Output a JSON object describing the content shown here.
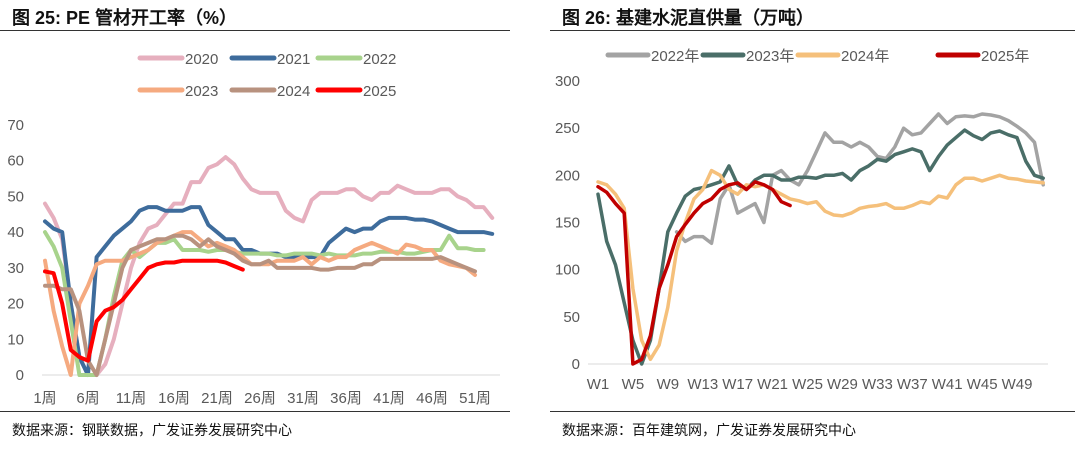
{
  "chart_data": [
    {
      "type": "line",
      "title": "图 25:  PE 管材开工率（%）",
      "source": "数据来源：钢联数据，广发证券发展研究中心",
      "ylim": [
        0,
        70
      ],
      "yticks": [
        "0",
        "10",
        "20",
        "30",
        "40",
        "50",
        "60",
        "70"
      ],
      "xticks": [
        "1周",
        "6周",
        "11周",
        "16周",
        "21周",
        "26周",
        "31周",
        "36周",
        "41周",
        "46周",
        "51周"
      ],
      "xunit": "week",
      "legend_position": "top",
      "grid": false,
      "series": [
        {
          "name": "2020",
          "color": "#e6afbe",
          "values": [
            48,
            44,
            38,
            20,
            5,
            0,
            0,
            3,
            10,
            20,
            30,
            37,
            41,
            42,
            45,
            48,
            48,
            54,
            54,
            58,
            59,
            61,
            59,
            55,
            52,
            51,
            51,
            51,
            46,
            44,
            43,
            49,
            51,
            51,
            51,
            52,
            52,
            50,
            49,
            51,
            51,
            53,
            52,
            51,
            51,
            51,
            52,
            52,
            50,
            49,
            47,
            47,
            44
          ]
        },
        {
          "name": "2021",
          "color": "#3e6c9c",
          "values": [
            43,
            41,
            40,
            20,
            5,
            0,
            33,
            36,
            39,
            41,
            43,
            46,
            47,
            47,
            46,
            46,
            46,
            47,
            47,
            42,
            40,
            38,
            38,
            35,
            35,
            34,
            34,
            34,
            33,
            33,
            33,
            33,
            33,
            37,
            39,
            41,
            40,
            41,
            41,
            43,
            44,
            44,
            44,
            43.5,
            43.5,
            43,
            42,
            41,
            40,
            40,
            40,
            40,
            39.5
          ]
        },
        {
          "name": "2022",
          "color": "#a8d38c",
          "values": [
            40,
            36,
            30,
            15,
            0,
            0,
            0,
            10,
            22,
            32,
            35,
            33,
            35,
            37,
            37,
            38,
            35,
            35,
            35,
            34.5,
            35,
            35,
            34.5,
            34,
            34,
            34,
            34,
            33.5,
            33.5,
            34,
            34,
            34,
            33.5,
            34,
            33.5,
            33.5,
            33.5,
            34,
            34,
            34.5,
            34.5,
            34.5,
            34,
            34,
            34.5,
            35,
            35,
            39,
            35.5,
            35.5,
            35,
            35
          ]
        },
        {
          "name": "2023",
          "color": "#f5aa80",
          "values": [
            32,
            18,
            8,
            0,
            20,
            25,
            31,
            32,
            32,
            32,
            33,
            34,
            35,
            37,
            38,
            39,
            40,
            40,
            38,
            36,
            37,
            36,
            35,
            33,
            31,
            31,
            31,
            32,
            32,
            32,
            33,
            31,
            33,
            32,
            33,
            33,
            35,
            36,
            37,
            36,
            35,
            34,
            36.5,
            36,
            35,
            35,
            32,
            31,
            30.5,
            30,
            28
          ]
        },
        {
          "name": "2024",
          "color": "#b8927f",
          "values": [
            25,
            25,
            24,
            24,
            18,
            4,
            0,
            10,
            20,
            30,
            35,
            36,
            37,
            38,
            38,
            39,
            39,
            38,
            36,
            38,
            36,
            35,
            34,
            32,
            31,
            31,
            32,
            30,
            30,
            30,
            30,
            30,
            29.5,
            29.5,
            30,
            30,
            30,
            31,
            31,
            32.5,
            32.5,
            32.5,
            32.5,
            32.5,
            32.5,
            32.5,
            33,
            32,
            31,
            30,
            29
          ]
        },
        {
          "name": "2025",
          "color": "#ff0000",
          "values": [
            29,
            28.5,
            20,
            7,
            5,
            4,
            15,
            18,
            19,
            21,
            24,
            27,
            30,
            31,
            31.5,
            31.5,
            32,
            32,
            32,
            32,
            32,
            31.5,
            30.5,
            29.5
          ]
        }
      ]
    },
    {
      "type": "line",
      "title": "图 26:  基建水泥直供量（万吨）",
      "source": "数据来源：百年建筑网，广发证券发展研究中心",
      "ylim": [
        0,
        300
      ],
      "yticks": [
        "0",
        "50",
        "100",
        "150",
        "200",
        "250",
        "300"
      ],
      "xticks": [
        "W1",
        "W5",
        "W9",
        "W13",
        "W17",
        "W21",
        "W25",
        "W29",
        "W33",
        "W37",
        "W41",
        "W45",
        "W49"
      ],
      "legend_position": "top",
      "grid": false,
      "series": [
        {
          "name": "2022年",
          "color": "#a3a3a3",
          "values": [
            null,
            null,
            null,
            null,
            null,
            null,
            null,
            null,
            null,
            140,
            130,
            135,
            135,
            128,
            175,
            190,
            160,
            165,
            170,
            150,
            200,
            205,
            195,
            190,
            205,
            225,
            245,
            235,
            235,
            230,
            235,
            230,
            220,
            218,
            230,
            250,
            243,
            245,
            255,
            265,
            255,
            262,
            263,
            262,
            265,
            264,
            262,
            258,
            252,
            245,
            235,
            190
          ]
        },
        {
          "name": "2023年",
          "color": "#4a6e68",
          "values": [
            180,
            130,
            105,
            65,
            25,
            0,
            25,
            80,
            140,
            160,
            178,
            185,
            187,
            190,
            193,
            210,
            190,
            185,
            195,
            200,
            200,
            195,
            195,
            198,
            198,
            197,
            200,
            200,
            202,
            195,
            205,
            210,
            217,
            215,
            222,
            225,
            228,
            225,
            205,
            220,
            232,
            240,
            248,
            242,
            238,
            245,
            247,
            243,
            240,
            215,
            200,
            197
          ]
        },
        {
          "name": "2024年",
          "color": "#f5c07b",
          "values": [
            193,
            190,
            180,
            165,
            80,
            25,
            5,
            20,
            60,
            120,
            150,
            175,
            185,
            205,
            200,
            185,
            180,
            190,
            188,
            190,
            185,
            180,
            175,
            173,
            170,
            172,
            162,
            158,
            157,
            160,
            165,
            167,
            168,
            170,
            165,
            165,
            168,
            172,
            170,
            178,
            176,
            190,
            197,
            197,
            194,
            197,
            200,
            197,
            196,
            194,
            193,
            192
          ]
        },
        {
          "name": "2025年",
          "color": "#c00000",
          "values": [
            188,
            182,
            170,
            160,
            0,
            5,
            30,
            80,
            105,
            135,
            148,
            160,
            170,
            175,
            185,
            190,
            192,
            185,
            193,
            190,
            185,
            172,
            168
          ]
        }
      ]
    }
  ]
}
